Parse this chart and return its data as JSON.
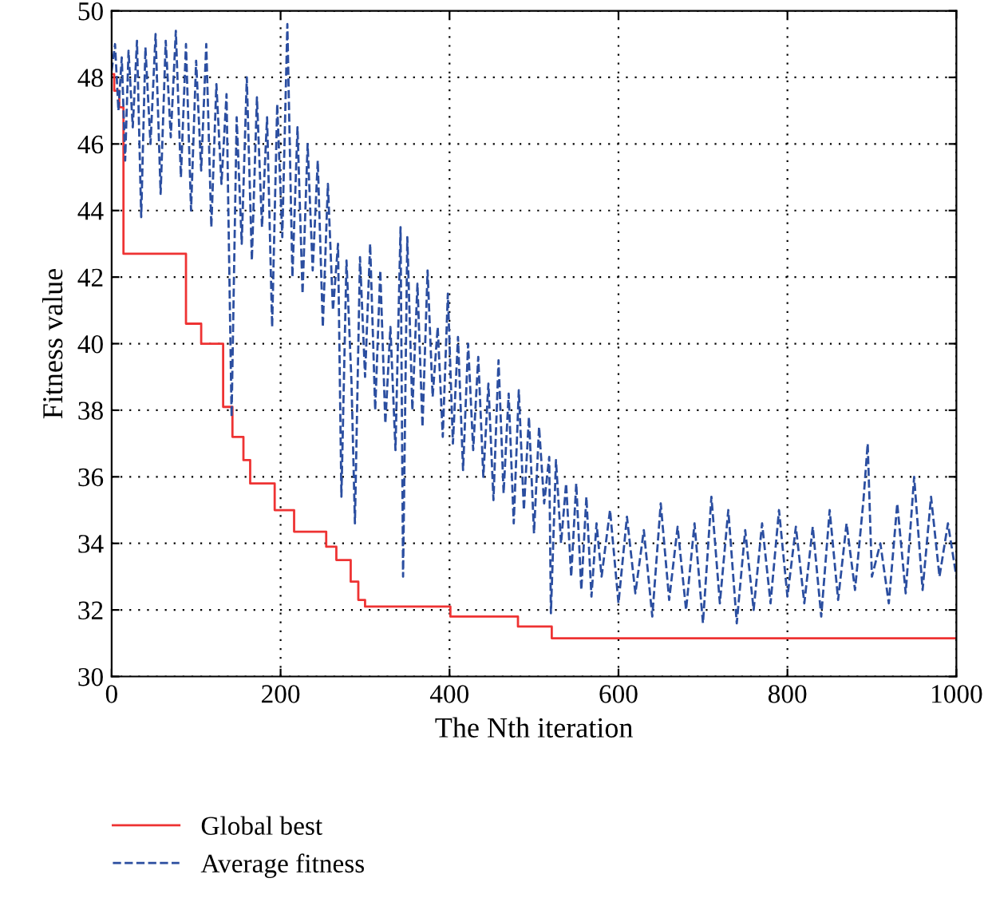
{
  "chart_data": {
    "type": "line",
    "xlabel": "The Nth iteration",
    "ylabel": "Fitness value",
    "xlim": [
      0,
      1000
    ],
    "ylim": [
      30,
      50
    ],
    "xticks": [
      0,
      200,
      400,
      600,
      800,
      1000
    ],
    "yticks": [
      30,
      32,
      34,
      36,
      38,
      40,
      42,
      44,
      46,
      48,
      50
    ],
    "grid": true,
    "legend": "bottom left",
    "series": [
      {
        "name": "Global best",
        "type": "step",
        "color": "#ee3333",
        "line_style": "solid",
        "x": [
          0,
          3,
          9,
          14,
          88,
          106,
          132,
          143,
          156,
          164,
          193,
          216,
          254,
          266,
          283,
          292,
          300,
          401,
          481,
          521,
          1000
        ],
        "values": [
          48.1,
          47.6,
          47.1,
          42.7,
          40.6,
          40.0,
          38.1,
          37.2,
          36.5,
          35.8,
          35.0,
          34.35,
          33.9,
          33.5,
          32.85,
          32.3,
          32.1,
          31.8,
          31.5,
          31.15,
          31.15
        ]
      },
      {
        "name": "Average fitness",
        "color": "#2b4ea0",
        "line_style": "dashed",
        "x": [
          0,
          4,
          8,
          12,
          16,
          20,
          25,
          30,
          35,
          40,
          46,
          52,
          58,
          64,
          70,
          76,
          82,
          88,
          94,
          100,
          106,
          112,
          118,
          124,
          130,
          136,
          142,
          148,
          154,
          160,
          166,
          172,
          178,
          184,
          190,
          196,
          202,
          208,
          214,
          220,
          226,
          232,
          238,
          244,
          250,
          256,
          262,
          268,
          272,
          278,
          284,
          288,
          294,
          300,
          306,
          312,
          318,
          324,
          330,
          336,
          342,
          345,
          350,
          356,
          362,
          368,
          374,
          380,
          386,
          392,
          398,
          404,
          410,
          416,
          422,
          428,
          434,
          440,
          446,
          452,
          458,
          464,
          470,
          476,
          482,
          488,
          494,
          500,
          506,
          512,
          518,
          520,
          526,
          532,
          538,
          544,
          550,
          556,
          562,
          568,
          574,
          580,
          590,
          600,
          610,
          620,
          630,
          640,
          650,
          660,
          670,
          680,
          690,
          700,
          710,
          720,
          730,
          740,
          750,
          760,
          770,
          780,
          790,
          800,
          810,
          820,
          830,
          840,
          850,
          860,
          870,
          880,
          890,
          895,
          900,
          910,
          920,
          930,
          940,
          950,
          960,
          970,
          980,
          990,
          1000
        ],
        "values": [
          48.2,
          49.0,
          47.0,
          48.6,
          45.5,
          48.8,
          46.5,
          49.1,
          43.8,
          48.9,
          46.0,
          49.3,
          44.5,
          49.1,
          46.2,
          49.4,
          45.0,
          49.0,
          44.0,
          48.5,
          45.2,
          49.0,
          43.5,
          47.8,
          44.8,
          47.5,
          37.8,
          46.8,
          43.0,
          48.0,
          42.5,
          47.4,
          43.5,
          46.8,
          40.5,
          47.2,
          43.2,
          49.6,
          42.0,
          46.5,
          41.5,
          46.0,
          42.2,
          45.5,
          40.5,
          44.8,
          41.0,
          43.0,
          35.4,
          42.5,
          38.8,
          34.6,
          42.6,
          39.0,
          43.0,
          38.0,
          42.2,
          37.6,
          40.5,
          36.8,
          43.5,
          33.0,
          43.2,
          38.0,
          41.8,
          37.5,
          42.2,
          38.4,
          40.5,
          37.2,
          41.5,
          37.0,
          40.2,
          36.2,
          40.0,
          36.8,
          39.6,
          36.0,
          38.8,
          35.3,
          39.5,
          35.5,
          38.5,
          34.6,
          38.6,
          35.0,
          37.8,
          34.3,
          37.5,
          35.2,
          36.6,
          31.9,
          36.5,
          34.0,
          35.8,
          33.0,
          35.8,
          32.6,
          35.4,
          32.4,
          34.6,
          33.0,
          35.0,
          32.2,
          34.8,
          32.5,
          34.4,
          31.8,
          35.2,
          32.3,
          34.5,
          32.0,
          34.6,
          31.6,
          35.4,
          32.2,
          35.0,
          31.6,
          34.4,
          32.0,
          34.6,
          32.2,
          35.0,
          32.4,
          34.5,
          32.2,
          34.5,
          31.8,
          35.0,
          32.3,
          34.6,
          32.6,
          35.3,
          37.0,
          33.0,
          34.0,
          32.2,
          35.2,
          32.5,
          36.0,
          32.6,
          35.4,
          33.0,
          34.6,
          33.0
        ]
      }
    ]
  }
}
